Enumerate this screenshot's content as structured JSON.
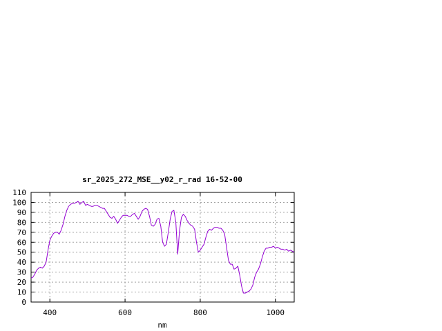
{
  "chart_data": {
    "type": "line",
    "title": "sr_2025_272_MSE__y02_r_rad 16-52-00",
    "xlabel": "nm",
    "ylabel": "",
    "xlim": [
      350,
      1050
    ],
    "ylim": [
      0,
      110
    ],
    "grid": true,
    "x_ticks": [
      400,
      600,
      800,
      1000
    ],
    "y_ticks": [
      0,
      10,
      20,
      30,
      40,
      50,
      60,
      70,
      80,
      90,
      100,
      110
    ],
    "x_tick_labels": [
      "400",
      "600",
      "800",
      "1000"
    ],
    "y_tick_labels": [
      "0",
      "10",
      "20",
      "30",
      "40",
      "50",
      "60",
      "70",
      "80",
      "90",
      "100",
      "110"
    ],
    "series": [
      {
        "color": "#9400d3",
        "x": [
          350,
          355,
          360,
          365,
          370,
          375,
          380,
          385,
          390,
          395,
          400,
          405,
          410,
          415,
          420,
          425,
          430,
          435,
          440,
          445,
          450,
          455,
          460,
          465,
          470,
          475,
          480,
          485,
          490,
          495,
          500,
          505,
          510,
          515,
          520,
          525,
          530,
          535,
          540,
          545,
          550,
          555,
          560,
          565,
          570,
          575,
          580,
          585,
          590,
          595,
          600,
          605,
          610,
          615,
          620,
          625,
          630,
          635,
          640,
          645,
          650,
          655,
          660,
          665,
          670,
          675,
          680,
          685,
          690,
          695,
          700,
          705,
          710,
          715,
          720,
          725,
          730,
          735,
          740,
          745,
          750,
          755,
          760,
          765,
          770,
          775,
          780,
          785,
          790,
          795,
          800,
          805,
          810,
          815,
          820,
          825,
          830,
          835,
          840,
          845,
          850,
          855,
          860,
          865,
          870,
          875,
          880,
          885,
          890,
          895,
          900,
          905,
          910,
          915,
          920,
          925,
          930,
          935,
          940,
          945,
          950,
          955,
          960,
          965,
          970,
          975,
          980,
          985,
          990,
          995,
          1000,
          1005,
          1010,
          1015,
          1020,
          1025,
          1030,
          1035,
          1040,
          1045,
          1050
        ],
        "y": [
          24,
          25,
          28,
          32,
          34,
          35,
          34,
          36,
          40,
          52,
          62,
          66,
          69,
          70,
          70,
          68,
          72,
          78,
          86,
          92,
          96,
          98,
          99,
          99,
          100,
          101,
          98,
          100,
          101,
          97,
          98,
          97,
          96,
          96,
          97,
          97,
          96,
          95,
          94,
          94,
          91,
          88,
          85,
          84,
          86,
          83,
          79,
          82,
          85,
          87,
          87,
          87,
          86,
          86,
          88,
          89,
          86,
          83,
          86,
          91,
          93,
          94,
          93,
          86,
          77,
          76,
          78,
          83,
          84,
          76,
          60,
          56,
          58,
          70,
          83,
          91,
          92,
          80,
          48,
          72,
          85,
          88,
          86,
          82,
          79,
          77,
          76,
          73,
          60,
          50,
          52,
          55,
          58,
          65,
          71,
          73,
          72,
          74,
          75,
          75,
          74,
          74,
          72,
          68,
          55,
          42,
          38,
          38,
          33,
          34,
          36,
          27,
          16,
          9,
          9,
          10,
          11,
          13,
          17,
          25,
          30,
          33,
          38,
          45,
          51,
          54,
          54,
          55,
          55,
          56,
          54,
          55,
          54,
          53,
          53,
          52,
          53,
          51,
          52,
          51,
          50
        ]
      }
    ]
  }
}
